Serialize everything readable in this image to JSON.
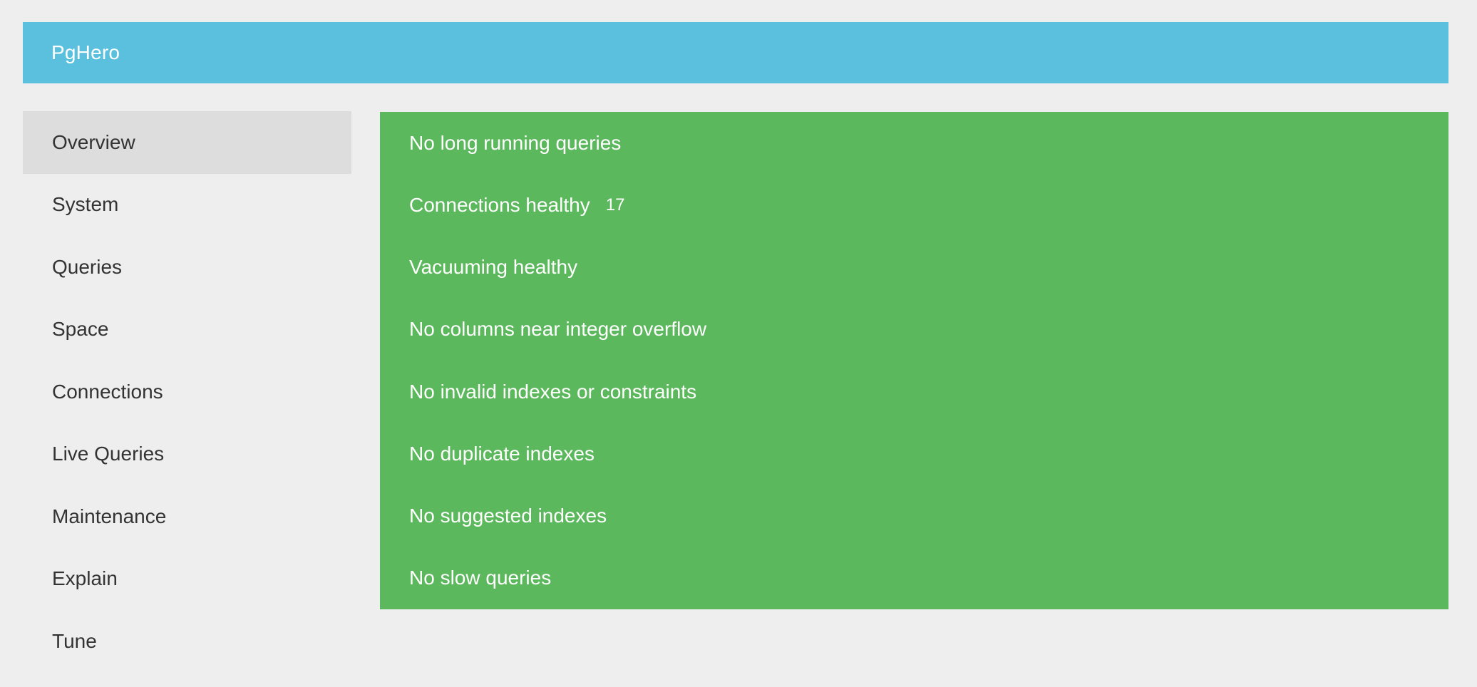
{
  "header": {
    "brand": "PgHero"
  },
  "colors": {
    "header_bg": "#5bc0de",
    "success_bg": "#5cb85c",
    "page_bg": "#eeeeee",
    "nav_active_bg": "#dddddd",
    "nav_text": "#333333",
    "status_text": "#ffffff"
  },
  "sidebar": {
    "items": [
      {
        "label": "Overview",
        "active": true
      },
      {
        "label": "System",
        "active": false
      },
      {
        "label": "Queries",
        "active": false
      },
      {
        "label": "Space",
        "active": false
      },
      {
        "label": "Connections",
        "active": false
      },
      {
        "label": "Live Queries",
        "active": false
      },
      {
        "label": "Maintenance",
        "active": false
      },
      {
        "label": "Explain",
        "active": false
      },
      {
        "label": "Tune",
        "active": false
      }
    ]
  },
  "statuses": [
    {
      "label": "No long running queries"
    },
    {
      "label": "Connections healthy",
      "count": "17"
    },
    {
      "label": "Vacuuming healthy"
    },
    {
      "label": "No columns near integer overflow"
    },
    {
      "label": "No invalid indexes or constraints"
    },
    {
      "label": "No duplicate indexes"
    },
    {
      "label": "No suggested indexes"
    },
    {
      "label": "No slow queries"
    }
  ]
}
